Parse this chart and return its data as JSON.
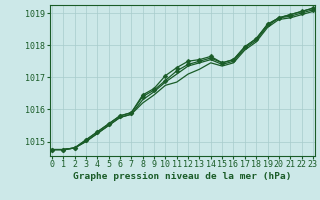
{
  "title": "Graphe pression niveau de la mer (hPa)",
  "bg_color": "#cce8e8",
  "grid_color": "#a8cccc",
  "line_color": "#1a5c28",
  "x_min": 0,
  "x_max": 23,
  "y_min": 1014.55,
  "y_max": 1019.25,
  "y_ticks": [
    1015,
    1016,
    1017,
    1018,
    1019
  ],
  "x_ticks": [
    0,
    1,
    2,
    3,
    4,
    5,
    6,
    7,
    8,
    9,
    10,
    11,
    12,
    13,
    14,
    15,
    16,
    17,
    18,
    19,
    20,
    21,
    22,
    23
  ],
  "series": [
    {
      "data": [
        1014.75,
        1014.75,
        1014.8,
        1015.0,
        1015.25,
        1015.5,
        1015.75,
        1015.85,
        1016.2,
        1016.45,
        1016.75,
        1016.85,
        1017.1,
        1017.25,
        1017.45,
        1017.35,
        1017.45,
        1017.85,
        1018.1,
        1018.55,
        1018.8,
        1018.85,
        1018.95,
        1019.05
      ],
      "marker": false
    },
    {
      "data": [
        1014.75,
        1014.75,
        1014.8,
        1015.0,
        1015.25,
        1015.5,
        1015.75,
        1015.85,
        1016.3,
        1016.55,
        1016.85,
        1017.1,
        1017.35,
        1017.45,
        1017.55,
        1017.4,
        1017.5,
        1017.9,
        1018.15,
        1018.6,
        1018.85,
        1018.95,
        1019.05,
        1019.15
      ],
      "marker": false
    },
    {
      "data": [
        1014.75,
        1014.75,
        1014.8,
        1015.05,
        1015.3,
        1015.55,
        1015.8,
        1015.9,
        1016.4,
        1016.6,
        1016.9,
        1017.2,
        1017.4,
        1017.5,
        1017.6,
        1017.45,
        1017.55,
        1017.95,
        1018.2,
        1018.65,
        1018.85,
        1018.95,
        1019.05,
        1019.15
      ],
      "marker": true
    },
    {
      "data": [
        1014.75,
        1014.75,
        1014.8,
        1015.05,
        1015.3,
        1015.55,
        1015.8,
        1015.9,
        1016.45,
        1016.65,
        1017.05,
        1017.3,
        1017.5,
        1017.55,
        1017.65,
        1017.45,
        1017.55,
        1017.95,
        1018.2,
        1018.65,
        1018.85,
        1018.9,
        1019.0,
        1019.1
      ],
      "marker": true
    }
  ],
  "marker_size": 2.5,
  "line_width": 0.9,
  "tick_fontsize": 6,
  "title_fontsize": 6.8,
  "border_color": "#1a5c28"
}
